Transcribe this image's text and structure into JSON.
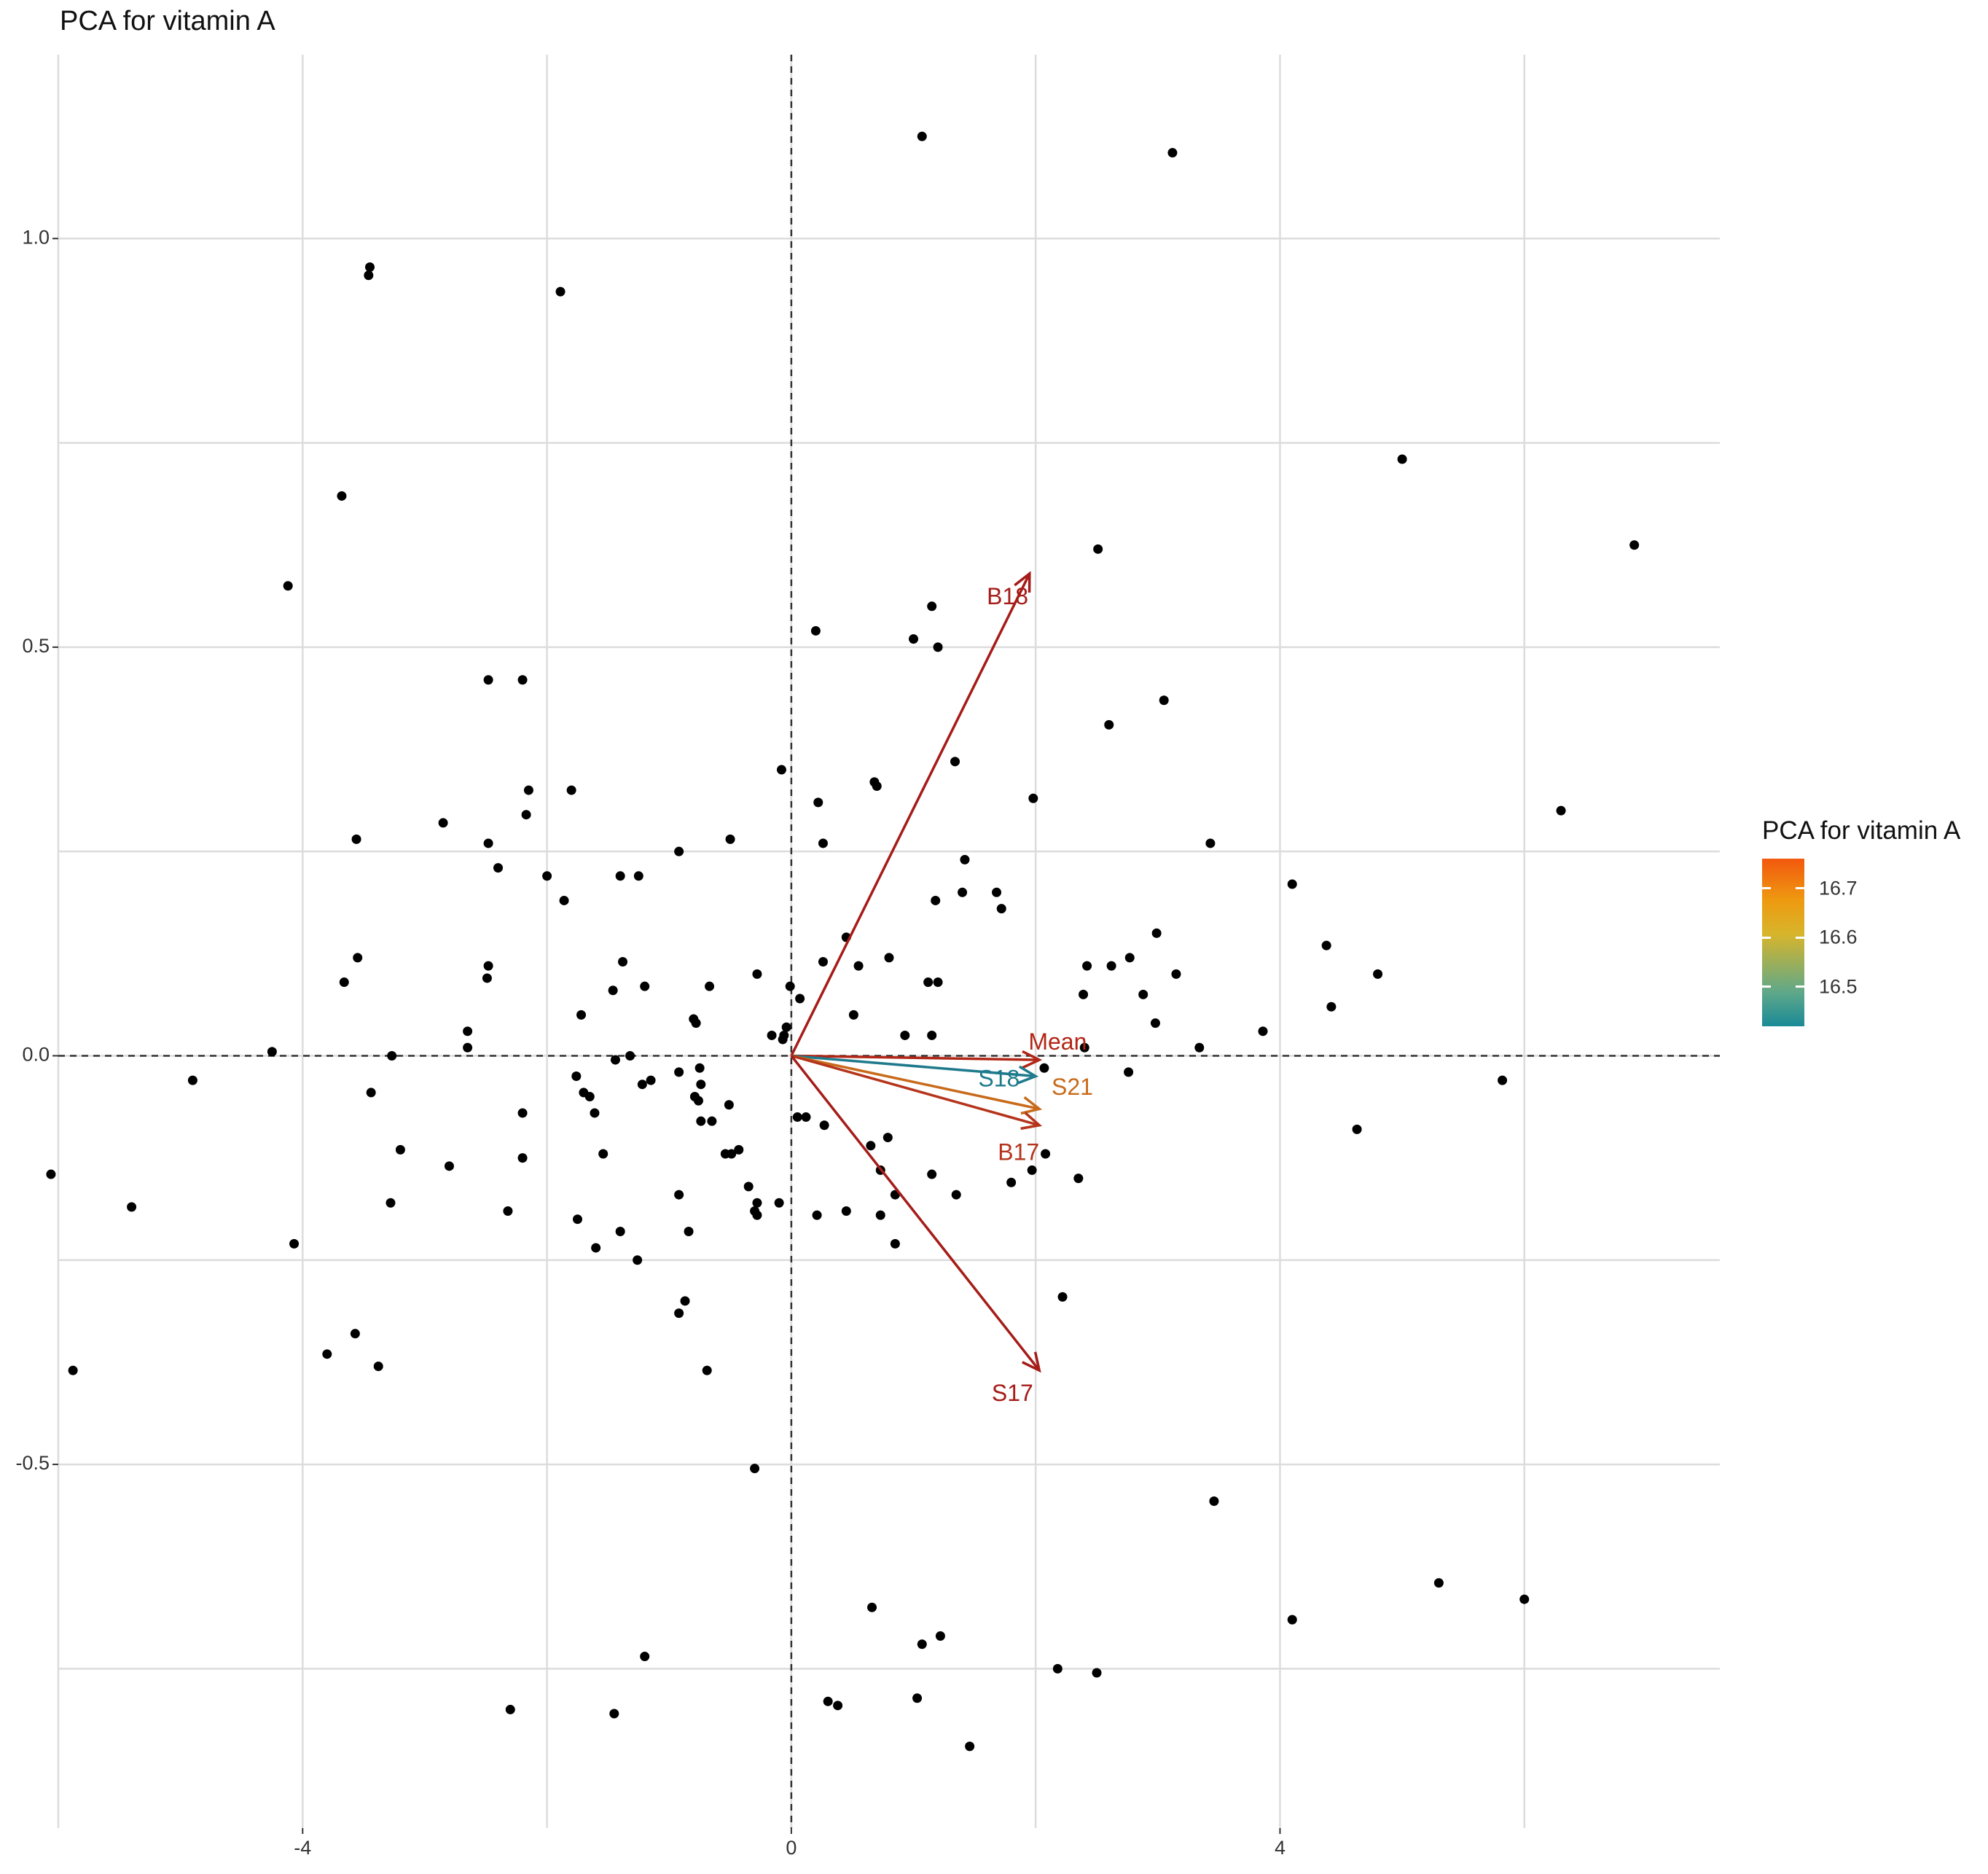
{
  "chart_data": {
    "type": "scatter",
    "title": "PCA for vitamin A",
    "xlabel": "",
    "ylabel": "",
    "xlim": [
      -6.0,
      7.6
    ],
    "ylim": [
      -0.945,
      1.225
    ],
    "grid": true,
    "x_ticks": [
      -4,
      0,
      4
    ],
    "x_tick_labels": [
      "-4",
      "0",
      "4"
    ],
    "y_ticks": [
      1.0,
      0.5,
      0.0,
      -0.5
    ],
    "y_tick_labels": [
      "1.0",
      "0.5",
      "0.0",
      "-0.5"
    ],
    "points": [
      [
        1.07,
        1.125
      ],
      [
        3.12,
        1.105
      ],
      [
        -3.45,
        0.965
      ],
      [
        -3.46,
        0.955
      ],
      [
        -1.89,
        0.935
      ],
      [
        5.0,
        0.73
      ],
      [
        6.9,
        0.625
      ],
      [
        -3.68,
        0.685
      ],
      [
        2.51,
        0.62
      ],
      [
        -4.12,
        0.575
      ],
      [
        1.15,
        0.55
      ],
      [
        0.2,
        0.52
      ],
      [
        1.0,
        0.51
      ],
      [
        1.2,
        0.5
      ],
      [
        -2.48,
        0.46
      ],
      [
        -2.2,
        0.46
      ],
      [
        3.05,
        0.435
      ],
      [
        2.6,
        0.405
      ],
      [
        1.34,
        0.36
      ],
      [
        -0.08,
        0.35
      ],
      [
        0.68,
        0.335
      ],
      [
        0.7,
        0.33
      ],
      [
        -1.8,
        0.325
      ],
      [
        -2.15,
        0.325
      ],
      [
        1.98,
        0.315
      ],
      [
        0.22,
        0.31
      ],
      [
        6.3,
        0.3
      ],
      [
        -2.17,
        0.295
      ],
      [
        -2.85,
        0.285
      ],
      [
        -3.56,
        0.265
      ],
      [
        -0.5,
        0.265
      ],
      [
        -2.48,
        0.26
      ],
      [
        0.26,
        0.26
      ],
      [
        3.43,
        0.26
      ],
      [
        -0.92,
        0.25
      ],
      [
        1.42,
        0.24
      ],
      [
        -2.4,
        0.23
      ],
      [
        -1.4,
        0.22
      ],
      [
        -1.25,
        0.22
      ],
      [
        -2.0,
        0.22
      ],
      [
        4.1,
        0.21
      ],
      [
        1.4,
        0.2
      ],
      [
        1.68,
        0.2
      ],
      [
        1.18,
        0.19
      ],
      [
        -1.86,
        0.19
      ],
      [
        1.72,
        0.18
      ],
      [
        2.99,
        0.15
      ],
      [
        0.45,
        0.145
      ],
      [
        4.38,
        0.135
      ],
      [
        2.77,
        0.12
      ],
      [
        0.8,
        0.12
      ],
      [
        -3.55,
        0.12
      ],
      [
        -1.38,
        0.115
      ],
      [
        0.26,
        0.115
      ],
      [
        2.62,
        0.11
      ],
      [
        2.42,
        0.11
      ],
      [
        4.8,
        0.1
      ],
      [
        -2.48,
        0.11
      ],
      [
        0.55,
        0.11
      ],
      [
        3.15,
        0.1
      ],
      [
        -0.28,
        0.1
      ],
      [
        -2.49,
        0.095
      ],
      [
        1.12,
        0.09
      ],
      [
        1.2,
        0.09
      ],
      [
        -3.66,
        0.09
      ],
      [
        -0.67,
        0.085
      ],
      [
        -0.01,
        0.085
      ],
      [
        -1.2,
        0.085
      ],
      [
        -1.46,
        0.08
      ],
      [
        2.88,
        0.075
      ],
      [
        2.39,
        0.075
      ],
      [
        0.07,
        0.07
      ],
      [
        4.42,
        0.06
      ],
      [
        0.51,
        0.05
      ],
      [
        -1.72,
        0.05
      ],
      [
        2.98,
        0.04
      ],
      [
        -0.78,
        0.04
      ],
      [
        -0.8,
        0.045
      ],
      [
        3.86,
        0.03
      ],
      [
        -2.65,
        0.03
      ],
      [
        -0.04,
        0.035
      ],
      [
        -0.16,
        0.025
      ],
      [
        -0.06,
        0.025
      ],
      [
        0.93,
        0.025
      ],
      [
        1.15,
        0.025
      ],
      [
        -0.07,
        0.02
      ],
      [
        3.34,
        0.01
      ],
      [
        2.4,
        0.01
      ],
      [
        -2.65,
        0.01
      ],
      [
        -4.25,
        0.005
      ],
      [
        -3.27,
        0.0
      ],
      [
        -1.32,
        0.0
      ],
      [
        -1.44,
        -0.005
      ],
      [
        -0.75,
        -0.015
      ],
      [
        -0.92,
        -0.02
      ],
      [
        2.07,
        -0.015
      ],
      [
        2.76,
        -0.02
      ],
      [
        5.82,
        -0.03
      ],
      [
        -1.76,
        -0.025
      ],
      [
        -1.15,
        -0.03
      ],
      [
        -1.22,
        -0.035
      ],
      [
        -0.74,
        -0.035
      ],
      [
        -0.79,
        -0.05
      ],
      [
        -3.44,
        -0.045
      ],
      [
        -4.9,
        -0.03
      ],
      [
        -1.7,
        -0.045
      ],
      [
        -1.65,
        -0.05
      ],
      [
        -0.76,
        -0.055
      ],
      [
        -0.51,
        -0.06
      ],
      [
        0.12,
        -0.075
      ],
      [
        0.27,
        -0.085
      ],
      [
        0.05,
        -0.075
      ],
      [
        -2.2,
        -0.07
      ],
      [
        -1.61,
        -0.07
      ],
      [
        -0.74,
        -0.08
      ],
      [
        -0.65,
        -0.08
      ],
      [
        4.63,
        -0.09
      ],
      [
        0.79,
        -0.1
      ],
      [
        0.65,
        -0.11
      ],
      [
        -3.2,
        -0.115
      ],
      [
        -0.43,
        -0.115
      ],
      [
        -1.54,
        -0.12
      ],
      [
        -0.49,
        -0.12
      ],
      [
        -0.54,
        -0.12
      ],
      [
        -2.2,
        -0.125
      ],
      [
        2.08,
        -0.12
      ],
      [
        -2.8,
        -0.135
      ],
      [
        0.73,
        -0.14
      ],
      [
        1.15,
        -0.145
      ],
      [
        1.97,
        -0.14
      ],
      [
        2.35,
        -0.15
      ],
      [
        -6.06,
        -0.145
      ],
      [
        1.8,
        -0.155
      ],
      [
        -0.35,
        -0.16
      ],
      [
        -0.92,
        -0.17
      ],
      [
        0.85,
        -0.17
      ],
      [
        1.35,
        -0.17
      ],
      [
        -0.1,
        -0.18
      ],
      [
        -0.28,
        -0.18
      ],
      [
        -0.3,
        -0.19
      ],
      [
        -3.28,
        -0.18
      ],
      [
        -5.4,
        -0.185
      ],
      [
        0.21,
        -0.195
      ],
      [
        0.45,
        -0.19
      ],
      [
        -2.32,
        -0.19
      ],
      [
        -0.84,
        -0.215
      ],
      [
        -4.07,
        -0.23
      ],
      [
        -1.4,
        -0.215
      ],
      [
        -1.75,
        -0.2
      ],
      [
        -0.28,
        -0.195
      ],
      [
        0.73,
        -0.195
      ],
      [
        -1.6,
        -0.235
      ],
      [
        0.85,
        -0.23
      ],
      [
        -1.26,
        -0.25
      ],
      [
        2.22,
        -0.295
      ],
      [
        -0.87,
        -0.3
      ],
      [
        -0.92,
        -0.315
      ],
      [
        -3.57,
        -0.34
      ],
      [
        -3.8,
        -0.365
      ],
      [
        -3.38,
        -0.38
      ],
      [
        -5.88,
        -0.385
      ],
      [
        -0.69,
        -0.385
      ],
      [
        -0.3,
        -0.505
      ],
      [
        3.46,
        -0.545
      ],
      [
        5.3,
        -0.645
      ],
      [
        6.0,
        -0.665
      ],
      [
        0.66,
        -0.675
      ],
      [
        4.1,
        -0.69
      ],
      [
        1.22,
        -0.71
      ],
      [
        1.07,
        -0.72
      ],
      [
        -1.2,
        -0.735
      ],
      [
        2.18,
        -0.75
      ],
      [
        2.5,
        -0.755
      ],
      [
        1.03,
        -0.786
      ],
      [
        0.3,
        -0.79
      ],
      [
        0.38,
        -0.795
      ],
      [
        -2.3,
        -0.8
      ],
      [
        -1.45,
        -0.805
      ],
      [
        1.46,
        -0.845
      ]
    ],
    "point_color": "#000000",
    "arrows": [
      {
        "label": "B18",
        "x": 1.95,
        "y": 0.59,
        "color": "#a51c18",
        "label_x": 1.77,
        "label_y": 0.56
      },
      {
        "label": "Mean",
        "x": 2.03,
        "y": -0.005,
        "color": "#b12616",
        "label_x": 2.18,
        "label_y": 0.015
      },
      {
        "label": "S18",
        "x": 2.0,
        "y": -0.025,
        "color": "#1f7a8c",
        "label_x": 1.7,
        "label_y": -0.03
      },
      {
        "label": "S21",
        "x": 2.03,
        "y": -0.065,
        "color": "#c86a1a",
        "label_x": 2.3,
        "label_y": -0.04
      },
      {
        "label": "B17",
        "x": 2.03,
        "y": -0.085,
        "color": "#b5341b",
        "label_x": 1.86,
        "label_y": -0.12
      },
      {
        "label": "S17",
        "x": 2.03,
        "y": -0.385,
        "color": "#a51c18",
        "label_x": 1.81,
        "label_y": -0.415
      }
    ],
    "legend": {
      "title": "PCA for vitamin A",
      "position": "right",
      "type": "colorbar",
      "min": 16.42,
      "max": 16.76,
      "ticks": [
        16.5,
        16.6,
        16.7
      ],
      "tick_labels": [
        "16.5",
        "16.6",
        "16.7"
      ],
      "colors": [
        "#1a8a96",
        "#5ea88a",
        "#d7b52c",
        "#ee9a10",
        "#f2580e"
      ]
    }
  }
}
